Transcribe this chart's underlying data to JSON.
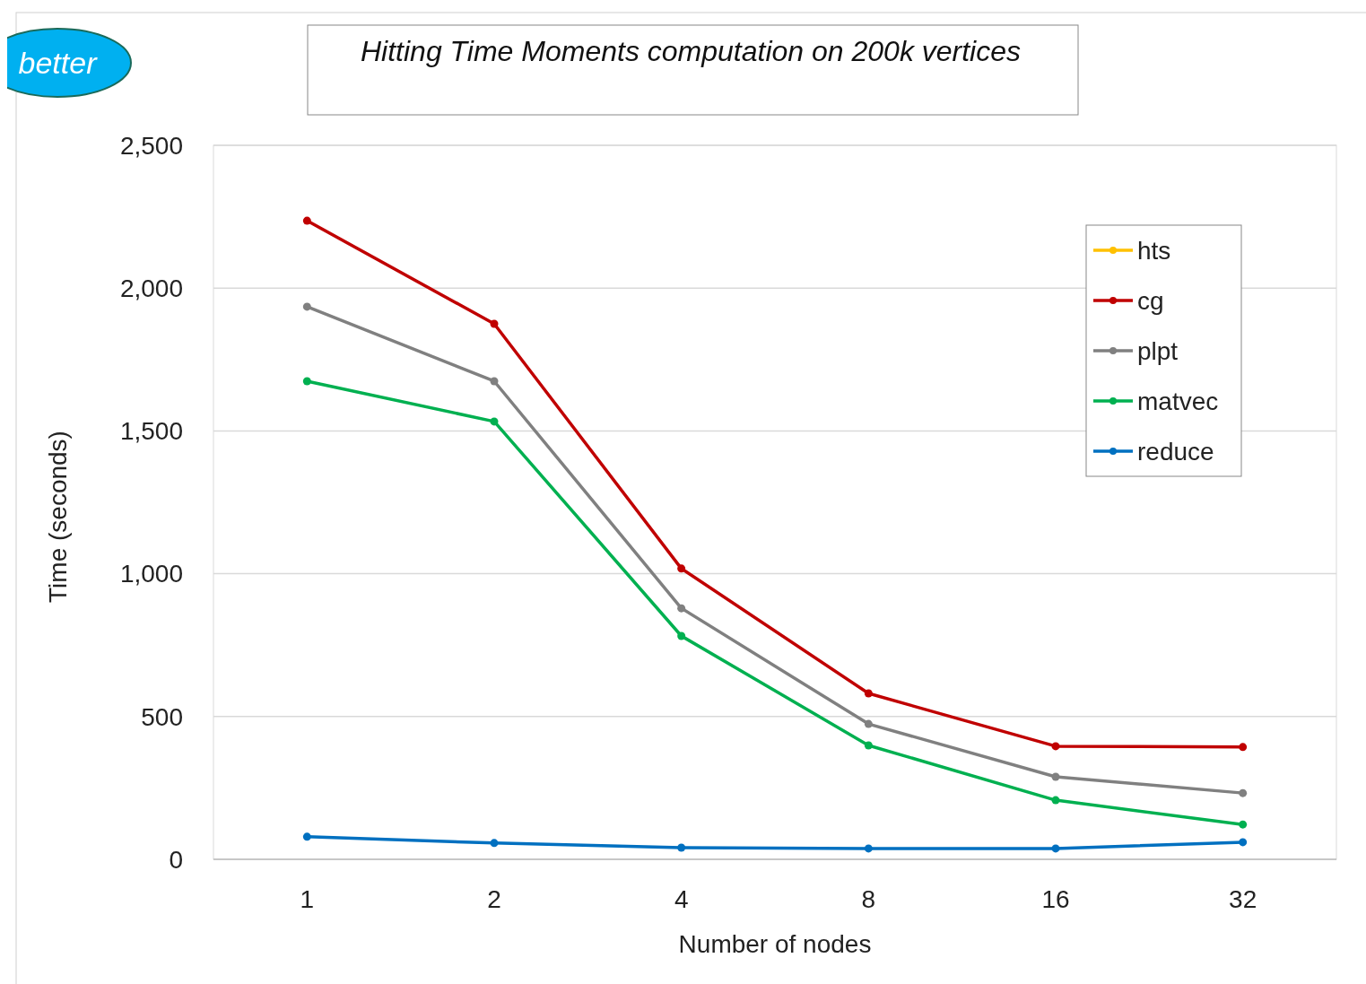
{
  "chart_data": {
    "type": "line",
    "title": "Hitting Time Moments computation  on 200k vertices",
    "xlabel": "Number of nodes",
    "ylabel": "Time (seconds)",
    "categories": [
      "1",
      "2",
      "4",
      "8",
      "16",
      "32"
    ],
    "series": [
      {
        "name": "hts",
        "color": "#ffc000",
        "values": [
          null,
          null,
          null,
          null,
          null,
          null
        ]
      },
      {
        "name": "cg",
        "color": "#c00000",
        "values": [
          2236,
          1875,
          1018,
          581,
          396,
          393
        ]
      },
      {
        "name": "plpt",
        "color": "#808080",
        "values": [
          1935,
          1674,
          879,
          474,
          289,
          232
        ]
      },
      {
        "name": "matvec",
        "color": "#00b050",
        "values": [
          1674,
          1533,
          782,
          399,
          207,
          122
        ]
      },
      {
        "name": "reduce",
        "color": "#0070c0",
        "values": [
          79,
          57,
          41,
          38,
          38,
          60
        ]
      }
    ],
    "ylim": [
      0,
      2500
    ],
    "yticks": [
      {
        "value": 0,
        "label": "0"
      },
      {
        "value": 500,
        "label": "500"
      },
      {
        "value": 1000,
        "label": "1,000"
      },
      {
        "value": 1500,
        "label": "1,500"
      },
      {
        "value": 2000,
        "label": "2,000"
      },
      {
        "value": 2500,
        "label": "2,500"
      }
    ],
    "grid": "y",
    "legend": "top right",
    "marker": "circle",
    "line_style": "solid",
    "annotations": [
      "better"
    ]
  }
}
